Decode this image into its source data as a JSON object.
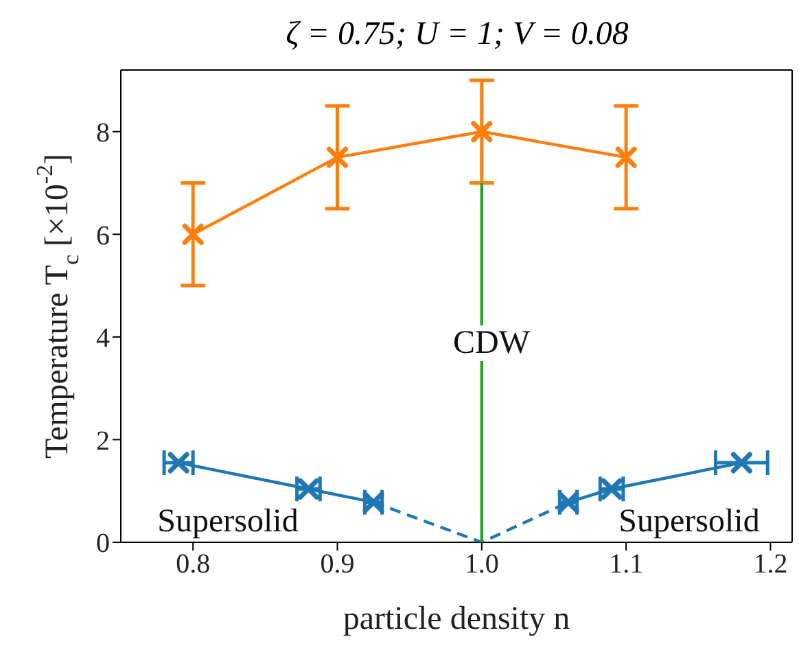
{
  "chart_data": {
    "type": "line",
    "title": "ζ = 0.75; U = 1; V = 0.08",
    "xlabel": "particle density n",
    "ylabel": "Temperature T$_{c}$ [×10$^{-2}$]",
    "xlim": [
      0.75,
      1.215
    ],
    "xticks": [
      0.8,
      0.9,
      {
        "value": 1,
        "label": "1.0"
      },
      1.1,
      1.2
    ],
    "ylim": [
      0,
      9.2
    ],
    "yticks": [
      0,
      2,
      4,
      6,
      8
    ],
    "grid": false,
    "legend": false,
    "series": [
      {
        "color": "#ff7f0e",
        "x": [
          0.8,
          0.9,
          1.0,
          1.1
        ],
        "values": [
          6,
          7.5,
          8,
          7.5
        ],
        "errors": [
          1,
          1,
          1,
          1
        ],
        "marker": "cross",
        "line_style": "solid"
      },
      {
        "color": "#1f77b4",
        "x": [
          0.79,
          0.88,
          0.925
        ],
        "values": [
          1.55,
          1.04,
          0.78
        ],
        "xerrors": [
          0.01,
          0.008,
          0.006
        ],
        "marker": "cross",
        "line_style": "solid"
      },
      {
        "color": "#1f77b4",
        "x": [
          1.06,
          1.09,
          1.18
        ],
        "values": [
          0.78,
          1.04,
          1.55
        ],
        "xerrors": [
          0.006,
          0.008,
          0.018
        ],
        "marker": "cross",
        "line_style": "solid"
      },
      {
        "color": "#1f77b4",
        "x": [
          0.925,
          1.0,
          1.06
        ],
        "values": [
          0.78,
          0,
          0.78
        ],
        "marker": "none",
        "line_style": "dashed"
      },
      {
        "color": "#2ca02c",
        "x": [
          1.0,
          1.0
        ],
        "values": [
          0,
          7
        ],
        "marker": "none",
        "line_style": "solid"
      }
    ],
    "annotations": [
      "CDW",
      "Supersolid",
      "Supersolid"
    ]
  }
}
